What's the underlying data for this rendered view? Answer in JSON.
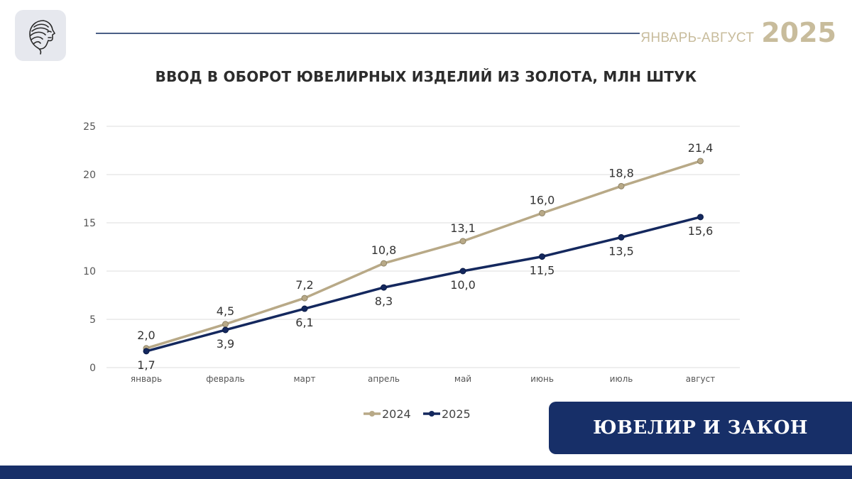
{
  "header": {
    "logo_icon": "woman-profile-icon",
    "period_label": "ЯНВАРЬ-АВГУСТ",
    "period_year": "2025"
  },
  "brand": {
    "text": "ЮВЕЛИР И ЗАКОН"
  },
  "colors": {
    "s2024": "#b8a987",
    "s2025": "#14285e",
    "grid": "#dcdcdc",
    "accent": "#172f68"
  },
  "chart_data": {
    "type": "line",
    "title": "ВВОД В ОБОРОТ ЮВЕЛИРНЫХ ИЗДЕЛИЙ ИЗ ЗОЛОТА, МЛН ШТУК",
    "categories": [
      "январь",
      "февраль",
      "март",
      "апрель",
      "май",
      "июнь",
      "июль",
      "август"
    ],
    "series": [
      {
        "name": "2024",
        "color": "#b8a987",
        "values": [
          2.0,
          4.5,
          7.2,
          10.8,
          13.1,
          16.0,
          18.8,
          21.4
        ],
        "labels": [
          "2,0",
          "4,5",
          "7,2",
          "10,8",
          "13,1",
          "16,0",
          "18,8",
          "21,4"
        ]
      },
      {
        "name": "2025",
        "color": "#14285e",
        "values": [
          1.7,
          3.9,
          6.1,
          8.3,
          10.0,
          11.5,
          13.5,
          15.6
        ],
        "labels": [
          "1,7",
          "3,9",
          "6,1",
          "8,3",
          "10,0",
          "11,5",
          "13,5",
          "15,6"
        ]
      }
    ],
    "ylim": [
      0,
      25
    ],
    "yticks": [
      "0",
      "5",
      "10",
      "15",
      "20",
      "25"
    ],
    "grid": true,
    "legend": "bottom-center"
  }
}
